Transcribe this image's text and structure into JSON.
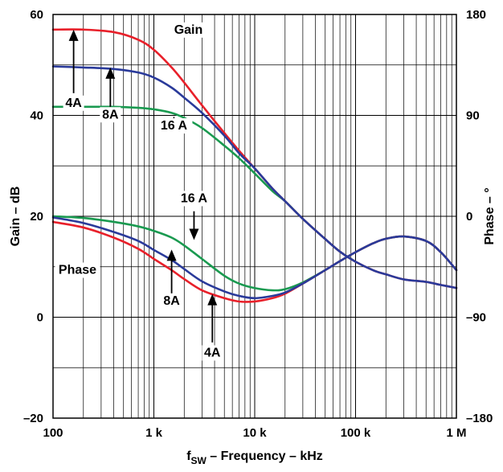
{
  "chart_data": {
    "type": "line",
    "xlabel_main": "f",
    "xlabel_sub": "SW",
    "xlabel_rest": " – Frequency – kHz",
    "ylabel_left": "Gain – dB",
    "ylabel_right": "Phase – °",
    "x_scale": "log",
    "xlim": [
      100,
      1000000
    ],
    "ylim_left": [
      -20,
      60
    ],
    "ylim_right": [
      -180,
      180
    ],
    "grid": true,
    "x_ticks": [
      {
        "value": 100,
        "label": "100"
      },
      {
        "value": 1000,
        "label": "1 k"
      },
      {
        "value": 10000,
        "label": "10 k"
      },
      {
        "value": 100000,
        "label": "100 k"
      },
      {
        "value": 1000000,
        "label": "1 M"
      }
    ],
    "y_ticks_left": [
      {
        "value": -20,
        "label": "–20"
      },
      {
        "value": 0,
        "label": "0"
      },
      {
        "value": 20,
        "label": "20"
      },
      {
        "value": 40,
        "label": "40"
      },
      {
        "value": 60,
        "label": "60"
      }
    ],
    "y_ticks_right": [
      {
        "value": -180,
        "label": "–180"
      },
      {
        "value": -90,
        "label": "–90"
      },
      {
        "value": 0,
        "label": "0"
      },
      {
        "value": 90,
        "label": "90"
      },
      {
        "value": 180,
        "label": "180"
      }
    ],
    "series": [
      {
        "id": "gain-4a",
        "axis": "left",
        "color": "#e8202a",
        "x": [
          100,
          200,
          400,
          700,
          1000,
          1500,
          2000,
          3000,
          5000,
          7000,
          10000,
          15000,
          20000,
          30000,
          50000,
          70000,
          100000,
          150000,
          200000,
          300000,
          500000,
          700000,
          1000000
        ],
        "y": [
          57,
          57,
          56.5,
          55,
          53,
          49.5,
          46.5,
          42,
          36.5,
          33,
          29.5,
          25.5,
          23,
          19.5,
          15.5,
          13,
          11,
          9.3,
          8.5,
          7.5,
          7,
          6.4,
          5.8
        ]
      },
      {
        "id": "gain-8a",
        "axis": "left",
        "color": "#2a3a9a",
        "x": [
          100,
          200,
          400,
          700,
          1000,
          1500,
          2000,
          3000,
          5000,
          7000,
          10000,
          15000,
          20000,
          30000,
          50000,
          70000,
          100000,
          150000,
          200000,
          300000,
          500000,
          700000,
          1000000
        ],
        "y": [
          49.7,
          49.5,
          49.2,
          48.5,
          47.5,
          45.5,
          43.5,
          40.5,
          36,
          32.5,
          29.5,
          25.5,
          23,
          19.5,
          15.5,
          13,
          11,
          9.3,
          8.5,
          7.5,
          7,
          6.4,
          5.8
        ]
      },
      {
        "id": "gain-16a",
        "axis": "left",
        "color": "#1a9a50",
        "x": [
          100,
          200,
          400,
          700,
          1000,
          1500,
          2000,
          3000,
          5000,
          7000,
          10000,
          15000,
          20000,
          30000,
          50000,
          70000,
          100000
        ],
        "y": [
          41.7,
          41.7,
          41.7,
          41.5,
          41.2,
          40.5,
          39.5,
          37.5,
          34,
          31.5,
          28.5,
          25,
          23,
          19.5,
          15.5,
          13,
          11
        ]
      },
      {
        "id": "phase-4a",
        "axis": "right",
        "color": "#e8202a",
        "x": [
          100,
          200,
          400,
          700,
          1000,
          1500,
          2000,
          3000,
          5000,
          7000,
          10000,
          15000,
          20000,
          30000,
          50000,
          70000,
          100000,
          150000,
          200000,
          300000,
          500000,
          700000,
          1000000
        ],
        "y": [
          -5,
          -10,
          -19,
          -29,
          -38,
          -48,
          -56,
          -66,
          -73,
          -76,
          -76,
          -73,
          -69,
          -60,
          -48,
          -40,
          -32,
          -24,
          -20,
          -18,
          -22,
          -32,
          -48
        ]
      },
      {
        "id": "phase-8a",
        "axis": "right",
        "color": "#2a3a9a",
        "x": [
          100,
          200,
          400,
          700,
          1000,
          1500,
          2000,
          3000,
          5000,
          7000,
          10000,
          15000,
          20000,
          30000,
          50000,
          70000,
          100000,
          150000,
          200000,
          300000,
          500000,
          700000,
          1000000
        ],
        "y": [
          -1,
          -6,
          -14,
          -22,
          -30,
          -39,
          -47,
          -58,
          -67,
          -71,
          -73,
          -71,
          -68,
          -60,
          -48,
          -40,
          -32,
          -24,
          -20,
          -18,
          -22,
          -32,
          -48
        ]
      },
      {
        "id": "phase-16a",
        "axis": "right",
        "color": "#1a9a50",
        "x": [
          100,
          200,
          400,
          700,
          1000,
          1500,
          2000,
          3000,
          5000,
          7000,
          10000,
          15000,
          20000,
          30000,
          50000,
          70000,
          100000,
          150000,
          200000,
          300000,
          500000,
          700000,
          1000000
        ],
        "y": [
          0,
          -1.5,
          -5,
          -9,
          -13,
          -19,
          -26,
          -38,
          -53,
          -60,
          -64,
          -66,
          -65,
          -59,
          -48,
          -40,
          -32,
          -24,
          -20,
          -18,
          -22,
          -32,
          -48
        ]
      }
    ],
    "annotations": [
      {
        "id": "gain",
        "text": "Gain",
        "x": 2200,
        "y": 56.2,
        "arrow": false
      },
      {
        "id": "phase",
        "text": "Phase",
        "x": 175,
        "y": 8.6,
        "arrow": false
      },
      {
        "id": "gain-4a-label",
        "text": "4A",
        "x": 160,
        "y": 41.7,
        "arrow": true,
        "tip_y": 57,
        "tail_y": 44.4
      },
      {
        "id": "gain-8a-label",
        "text": "8A",
        "x": 370,
        "y": 39.4,
        "arrow": true,
        "tip_y": 49.5,
        "tail_y": 41.7
      },
      {
        "id": "gain-16a-label",
        "text": "16 A",
        "x": 1580,
        "y": 37.2,
        "arrow": true,
        "tip_y": 39.8,
        "tail_y": 39.2
      },
      {
        "id": "phase-16a-label",
        "text": "16 A",
        "x": 2500,
        "y": 22.8,
        "arrow": true,
        "tip_y": 15.3,
        "tail_y": 21
      },
      {
        "id": "phase-8a-label",
        "text": "8A",
        "x": 1500,
        "y": 2.5,
        "arrow": true,
        "tip_y": 13.4,
        "tail_y": 4.6
      },
      {
        "id": "phase-4a-label",
        "text": "4A",
        "x": 3800,
        "y": -7.8,
        "arrow": true,
        "tip_y": 4.6,
        "tail_y": -5
      }
    ]
  }
}
